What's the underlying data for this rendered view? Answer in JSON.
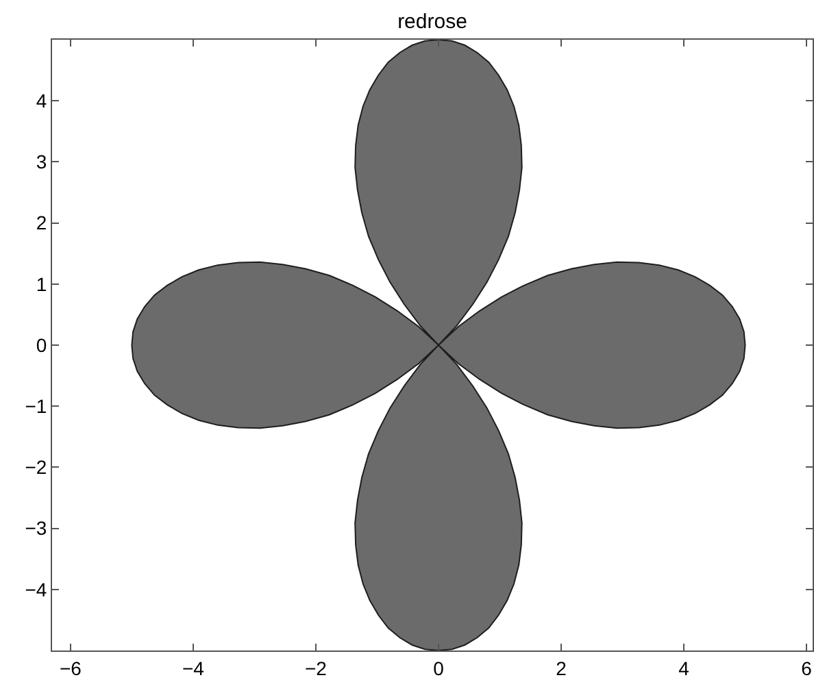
{
  "chart_data": {
    "type": "area",
    "title": "redrose",
    "xlim": [
      -6.3,
      6.1
    ],
    "ylim": [
      -5,
      5
    ],
    "xticks": [
      {
        "value": -6,
        "label": "−6"
      },
      {
        "value": -4,
        "label": "−4"
      },
      {
        "value": -2,
        "label": "−2"
      },
      0,
      2,
      4,
      6
    ],
    "yticks": [
      {
        "value": -4,
        "label": "−4"
      },
      {
        "value": -3,
        "label": "−3"
      },
      {
        "value": -2,
        "label": "−2"
      },
      {
        "value": -1,
        "label": "−1"
      },
      0,
      1,
      2,
      3,
      4
    ],
    "series": [
      {
        "color": "#6b6b6b",
        "x": [
          0,
          0.32,
          0.67,
          1.03,
          1.4,
          1.78,
          2.17,
          2.54,
          2.91,
          3.27,
          3.6,
          3.91,
          4.18,
          4.42,
          4.63,
          4.79,
          4.91,
          4.98,
          5.0,
          4.98,
          4.91,
          4.79,
          4.63,
          4.42,
          4.18,
          3.91,
          3.6,
          3.27,
          2.91,
          2.54,
          2.17,
          1.78,
          1.4,
          1.03,
          0.67,
          0.32,
          0,
          0.3,
          0.56,
          0.79,
          0.98,
          1.14,
          1.25,
          1.32,
          1.36,
          1.35,
          1.31,
          1.23,
          1.12,
          0.98,
          0.82,
          0.63,
          0.43,
          0.22,
          0,
          -0.22,
          -0.43,
          -0.63,
          -0.82,
          -0.98,
          -1.12,
          -1.23,
          -1.31,
          -1.35,
          -1.36,
          -1.32,
          -1.25,
          -1.14,
          -0.98,
          -0.79,
          -0.56,
          -0.3,
          0,
          -0.32,
          -0.67,
          -1.03,
          -1.4,
          -1.78,
          -2.17,
          -2.54,
          -2.91,
          -3.27,
          -3.6,
          -3.91,
          -4.18,
          -4.42,
          -4.63,
          -4.79,
          -4.91,
          -4.98,
          -5.0,
          -4.98,
          -4.91,
          -4.79,
          -4.63,
          -4.42,
          -4.18,
          -3.91,
          -3.6,
          -3.27,
          -2.91,
          -2.54,
          -2.17,
          -1.78,
          -1.4,
          -1.03,
          -0.67,
          -0.32,
          0,
          -0.3,
          -0.56,
          -0.79,
          -0.98,
          -1.14,
          -1.25,
          -1.32,
          -1.36,
          -1.35,
          -1.31,
          -1.23,
          -1.12,
          -0.98,
          -0.82,
          -0.63,
          -0.43,
          -0.22,
          0,
          0.22,
          0.43,
          0.63,
          0.82,
          0.98,
          1.12,
          1.23,
          1.31,
          1.35,
          1.36,
          1.32,
          1.25,
          1.14,
          0.98,
          0.79,
          0.56,
          0.3,
          0
        ],
        "values": [
          0,
          -0.3,
          -0.56,
          -0.79,
          -0.98,
          -1.14,
          -1.25,
          -1.32,
          -1.36,
          -1.35,
          -1.31,
          -1.23,
          -1.12,
          -0.98,
          -0.82,
          -0.63,
          -0.43,
          -0.22,
          0,
          0.22,
          0.43,
          0.63,
          0.82,
          0.98,
          1.12,
          1.23,
          1.31,
          1.35,
          1.36,
          1.32,
          1.25,
          1.14,
          0.98,
          0.79,
          0.56,
          0.3,
          0,
          0.32,
          0.67,
          1.03,
          1.4,
          1.78,
          2.17,
          2.54,
          2.91,
          3.27,
          3.6,
          3.91,
          4.18,
          4.42,
          4.63,
          4.79,
          4.91,
          4.98,
          5.0,
          4.98,
          4.91,
          4.79,
          4.63,
          4.42,
          4.18,
          3.91,
          3.6,
          3.27,
          2.91,
          2.54,
          2.17,
          1.78,
          1.4,
          1.03,
          0.67,
          0.32,
          0,
          0.3,
          0.56,
          0.79,
          0.98,
          1.14,
          1.25,
          1.32,
          1.36,
          1.35,
          1.31,
          1.23,
          1.12,
          0.98,
          0.82,
          0.63,
          0.43,
          0.22,
          0,
          -0.22,
          -0.43,
          -0.63,
          -0.82,
          -0.98,
          -1.12,
          -1.23,
          -1.31,
          -1.35,
          -1.36,
          -1.32,
          -1.25,
          -1.14,
          -0.98,
          -0.79,
          -0.56,
          -0.3,
          0,
          -0.32,
          -0.67,
          -1.03,
          -1.4,
          -1.78,
          -2.17,
          -2.54,
          -2.91,
          -3.27,
          -3.6,
          -3.91,
          -4.18,
          -4.42,
          -4.63,
          -4.79,
          -4.91,
          -4.98,
          -5.0,
          -4.98,
          -4.91,
          -4.79,
          -4.63,
          -4.42,
          -4.18,
          -3.91,
          -3.6,
          -3.27,
          -2.91,
          -2.54,
          -2.17,
          -1.78,
          -1.4,
          -1.03,
          -0.67,
          -0.32,
          0
        ]
      }
    ]
  }
}
